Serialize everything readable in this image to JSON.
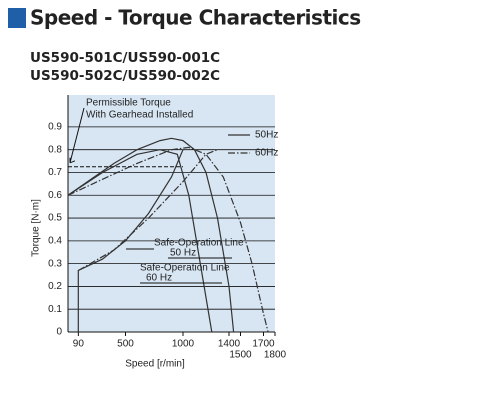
{
  "header": {
    "title": "Speed - Torque Characteristics",
    "models": [
      "US590-501C/US590-001C",
      "US590-502C/US590-002C"
    ]
  },
  "chart_data": {
    "type": "line",
    "x_label": "Speed [r/min]",
    "y_label": "Torque [N·m]",
    "xlim": [
      0,
      1800
    ],
    "ylim": [
      0,
      1.04
    ],
    "xticks": [
      90,
      500,
      1000,
      1400,
      1500,
      1700,
      1800
    ],
    "yticks": [
      0,
      0.1,
      0.2,
      0.3,
      0.4,
      0.5,
      0.6,
      0.7,
      0.8,
      0.9
    ],
    "grid": true,
    "permissible_torque": 0.725,
    "annotations": [
      {
        "text": [
          "Permissible Torque",
          "With Gearhead Installed"
        ]
      },
      {
        "text": [
          "Safe-Operation Line",
          "50 Hz"
        ]
      },
      {
        "text": [
          "Safe-Operation Line",
          "60 Hz"
        ]
      }
    ],
    "series": [
      {
        "name": "50Hz",
        "color": "#333333",
        "style": "solid",
        "lines": [
          {
            "x": [
              0,
              200,
              400,
              600,
              800,
              900,
              1000,
              1100,
              1200,
              1300,
              1400,
              1440
            ],
            "values": [
              0.6,
              0.67,
              0.74,
              0.8,
              0.84,
              0.85,
              0.84,
              0.8,
              0.7,
              0.5,
              0.2,
              0
            ]
          },
          {
            "x": [
              0,
              300,
              600,
              800,
              950,
              1050,
              1150,
              1250
            ],
            "values": [
              0.6,
              0.7,
              0.78,
              0.8,
              0.78,
              0.6,
              0.3,
              0
            ]
          },
          {
            "x": [
              90,
              90,
              300,
              500,
              700,
              900,
              1000
            ],
            "values": [
              0,
              0.27,
              0.32,
              0.4,
              0.52,
              0.68,
              0.8
            ]
          }
        ]
      },
      {
        "name": "60Hz",
        "color": "#333333",
        "style": "dashdot",
        "lines": [
          {
            "x": [
              0,
              300,
              600,
              900,
              1050,
              1200,
              1350,
              1500,
              1600,
              1700,
              1740
            ],
            "values": [
              0.6,
              0.67,
              0.74,
              0.8,
              0.81,
              0.78,
              0.68,
              0.48,
              0.3,
              0.08,
              0
            ]
          },
          {
            "x": [
              90,
              400,
              700,
              1000,
              1200,
              1300
            ],
            "values": [
              0.27,
              0.36,
              0.5,
              0.66,
              0.78,
              0.8
            ]
          }
        ]
      }
    ]
  }
}
